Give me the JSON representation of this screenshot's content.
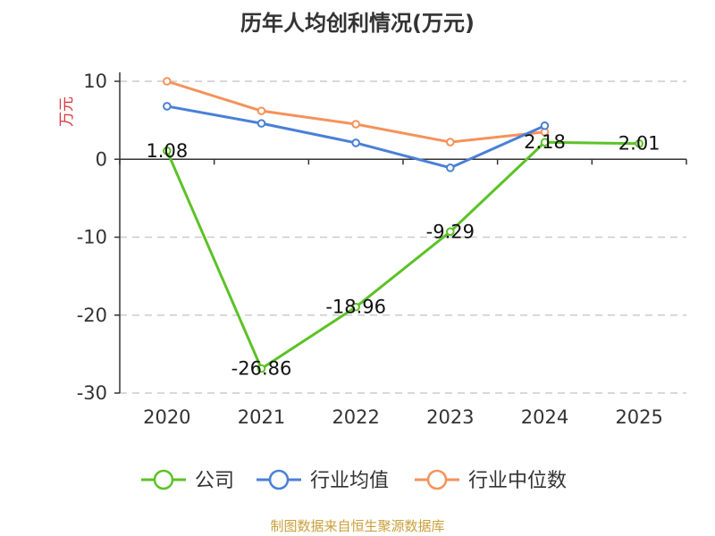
{
  "chart_data": {
    "type": "line",
    "title": "历年人均创利情况(万元)",
    "ylabel": "万元",
    "xlabel": "",
    "categories": [
      "2020",
      "2021",
      "2022",
      "2023",
      "2024",
      "2025"
    ],
    "ylim": [
      -30,
      10
    ],
    "yticks": [
      10,
      0,
      -10,
      -20,
      -30
    ],
    "ytick_labels": [
      "10",
      "0",
      "-10",
      "-20",
      "-30"
    ],
    "grid": true,
    "legend_position": "bottom",
    "series": [
      {
        "name": "公司",
        "color": "#5cc227",
        "values": [
          1.08,
          -26.86,
          -18.96,
          -9.29,
          2.18,
          2.01
        ],
        "labels": [
          "1.08",
          "-26.86",
          "-18.96",
          "-9.29",
          "2.18",
          "2.01"
        ]
      },
      {
        "name": "行业均值",
        "color": "#4a7fd8",
        "values": [
          6.8,
          4.6,
          2.1,
          -1.1,
          4.3,
          null
        ]
      },
      {
        "name": "行业中位数",
        "color": "#f5925a",
        "values": [
          10.0,
          6.2,
          4.5,
          2.2,
          3.5,
          null
        ]
      }
    ]
  },
  "footer": {
    "source": "制图数据来自恒生聚源数据库"
  }
}
